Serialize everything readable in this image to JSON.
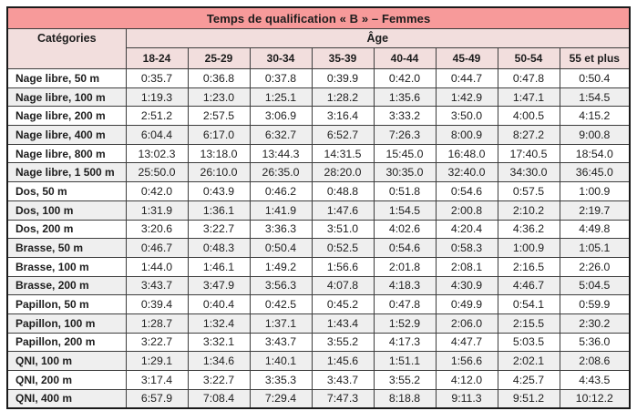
{
  "table": {
    "title": "Temps de qualification « B » – Femmes",
    "categories_header": "Catégories",
    "age_header": "Âge",
    "age_columns": [
      "18-24",
      "25-29",
      "30-34",
      "35-39",
      "40-44",
      "45-49",
      "50-54",
      "55 et plus"
    ],
    "rows": [
      {
        "label": "Nage libre, 50 m",
        "times": [
          "0:35.7",
          "0:36.8",
          "0:37.8",
          "0:39.9",
          "0:42.0",
          "0:44.7",
          "0:47.8",
          "0:50.4"
        ]
      },
      {
        "label": "Nage libre, 100 m",
        "times": [
          "1:19.3",
          "1:23.0",
          "1:25.1",
          "1:28.2",
          "1:35.6",
          "1:42.9",
          "1:47.1",
          "1:54.5"
        ]
      },
      {
        "label": "Nage libre, 200 m",
        "times": [
          "2:51.2",
          "2:57.5",
          "3:06.9",
          "3:16.4",
          "3:33.2",
          "3:50.0",
          "4:00.5",
          "4:15.2"
        ]
      },
      {
        "label": "Nage libre, 400 m",
        "times": [
          "6:04.4",
          "6:17.0",
          "6:32.7",
          "6:52.7",
          "7:26.3",
          "8:00.9",
          "8:27.2",
          "9:00.8"
        ]
      },
      {
        "label": "Nage libre, 800 m",
        "times": [
          "13:02.3",
          "13:18.0",
          "13:44.3",
          "14:31.5",
          "15:45.0",
          "16:48.0",
          "17:40.5",
          "18:54.0"
        ]
      },
      {
        "label": "Nage libre, 1 500 m",
        "times": [
          "25:50.0",
          "26:10.0",
          "26:35.0",
          "28:20.0",
          "30:35.0",
          "32:40.0",
          "34:30.0",
          "36:45.0"
        ]
      },
      {
        "label": "Dos, 50 m",
        "times": [
          "0:42.0",
          "0:43.9",
          "0:46.2",
          "0:48.8",
          "0:51.8",
          "0:54.6",
          "0:57.5",
          "1:00.9"
        ]
      },
      {
        "label": "Dos, 100 m",
        "times": [
          "1:31.9",
          "1:36.1",
          "1:41.9",
          "1:47.6",
          "1:54.5",
          "2:00.8",
          "2:10.2",
          "2:19.7"
        ]
      },
      {
        "label": "Dos, 200 m",
        "times": [
          "3:20.6",
          "3:22.7",
          "3:36.3",
          "3:51.0",
          "4:02.6",
          "4:20.4",
          "4:36.2",
          "4:49.8"
        ]
      },
      {
        "label": "Brasse, 50 m",
        "times": [
          "0:46.7",
          "0:48.3",
          "0:50.4",
          "0:52.5",
          "0:54.6",
          "0:58.3",
          "1:00.9",
          "1:05.1"
        ]
      },
      {
        "label": "Brasse, 100 m",
        "times": [
          "1:44.0",
          "1:46.1",
          "1:49.2",
          "1:56.6",
          "2:01.8",
          "2:08.1",
          "2:16.5",
          "2:26.0"
        ]
      },
      {
        "label": "Brasse, 200 m",
        "times": [
          "3:43.7",
          "3:47.9",
          "3:56.3",
          "4:07.8",
          "4:18.3",
          "4:30.9",
          "4:46.7",
          "5:04.5"
        ]
      },
      {
        "label": "Papillon, 50 m",
        "times": [
          "0:39.4",
          "0:40.4",
          "0:42.5",
          "0:45.2",
          "0:47.8",
          "0:49.9",
          "0:54.1",
          "0:59.9"
        ]
      },
      {
        "label": "Papillon, 100 m",
        "times": [
          "1:28.7",
          "1:32.4",
          "1:37.1",
          "1:43.4",
          "1:52.9",
          "2:06.0",
          "2:15.5",
          "2:30.2"
        ]
      },
      {
        "label": "Papillon, 200 m",
        "times": [
          "3:22.7",
          "3:32.1",
          "3:43.7",
          "3:55.2",
          "4:17.3",
          "4:47.7",
          "5:03.5",
          "5:36.0"
        ]
      },
      {
        "label": "QNI, 100 m",
        "times": [
          "1:29.1",
          "1:34.6",
          "1:40.1",
          "1:45.6",
          "1:51.1",
          "1:56.6",
          "2:02.1",
          "2:08.6"
        ]
      },
      {
        "label": "QNI, 200 m",
        "times": [
          "3:17.4",
          "3:22.7",
          "3:35.3",
          "3:43.7",
          "3:55.2",
          "4:12.0",
          "4:25.7",
          "4:43.5"
        ]
      },
      {
        "label": "QNI, 400 m",
        "times": [
          "6:57.9",
          "7:08.4",
          "7:29.4",
          "7:47.3",
          "8:18.8",
          "9:11.3",
          "9:51.2",
          "10:12.2"
        ]
      }
    ],
    "colors": {
      "title_bg": "#f79a9a",
      "header_bg": "#f2dedd",
      "stripe_bg": "#efefef",
      "inner_border": "#3d3d3d",
      "outer_border": "#1a1a1a",
      "text": "#1d1d1d"
    }
  }
}
